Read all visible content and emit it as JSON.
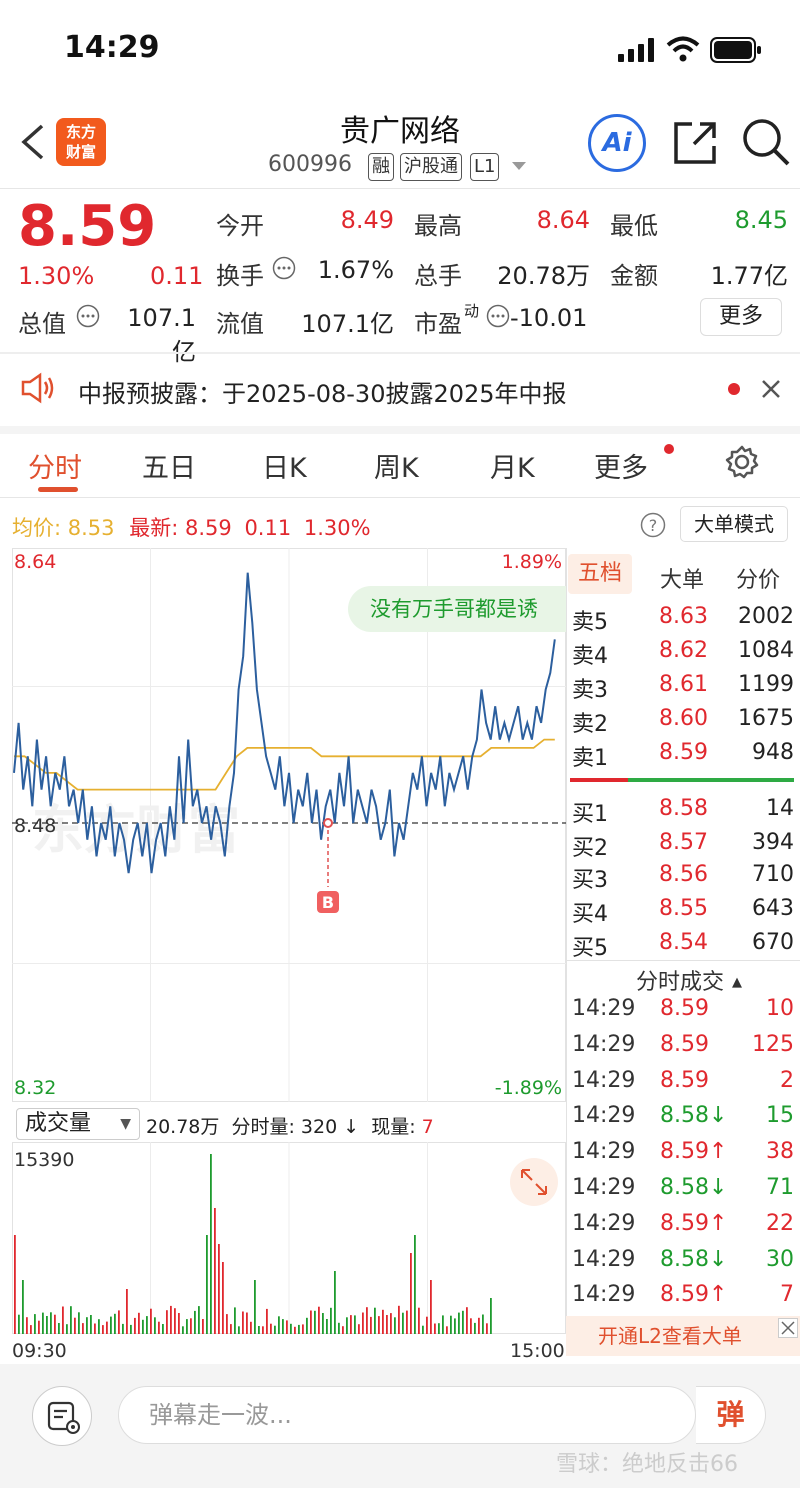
{
  "status": {
    "time": "14:29"
  },
  "header": {
    "logo": [
      "东方",
      "财富"
    ],
    "title": "贵广网络",
    "code": "600996",
    "tags": [
      "融",
      "沪股通",
      "L1"
    ],
    "ai_label": "Ai"
  },
  "quote": {
    "price": "8.59",
    "change_pct": "1.30%",
    "change": "0.11",
    "open_label": "今开",
    "open": "8.49",
    "high_label": "最高",
    "high": "8.64",
    "low_label": "最低",
    "low": "8.45",
    "turnover_label": "换手",
    "turnover": "1.67%",
    "volume_label": "总手",
    "volume": "20.78万",
    "amount_label": "金额",
    "amount": "1.77亿",
    "mcap_label": "总值",
    "mcap": "107.1亿",
    "float_label": "流值",
    "float": "107.1亿",
    "pe_label": "市盈",
    "pe_sup": "动",
    "pe": "-10.01",
    "more_label": "更多"
  },
  "notice": {
    "text": "中报预披露：于2025-08-30披露2025年中报"
  },
  "tabs": [
    "分时",
    "五日",
    "日K",
    "周K",
    "月K",
    "更多"
  ],
  "chart_info": {
    "avg_label": "均价:",
    "avg": "8.53",
    "latest_label": "最新:",
    "latest": "8.59",
    "latest_chg": "0.11",
    "latest_pct": "1.30%",
    "big_mode": "大单模式",
    "comment_bubble": "没有万手哥都是诱"
  },
  "chart_data": {
    "type": "line",
    "ylim": [
      8.32,
      8.64
    ],
    "y_tick_labels": [
      "8.64",
      "8.48",
      "8.32"
    ],
    "pct_labels": [
      "1.89%",
      "-1.89%"
    ],
    "x_tick_labels": [
      "09:30",
      "15:00"
    ],
    "prev_close": 8.48,
    "marker": {
      "label": "B",
      "price": 8.48
    },
    "series": [
      {
        "values": [
          8.51,
          8.54,
          8.5,
          8.52,
          8.49,
          8.53,
          8.5,
          8.52,
          8.49,
          8.51,
          8.5,
          8.52,
          8.49,
          8.5,
          8.48,
          8.5,
          8.47,
          8.49,
          8.46,
          8.48,
          8.47,
          8.49,
          8.46,
          8.48,
          8.47,
          8.45,
          8.47,
          8.48,
          8.46,
          8.48,
          8.45,
          8.47,
          8.48,
          8.46,
          8.49,
          8.47,
          8.52,
          8.48,
          8.53,
          8.49,
          8.5,
          8.48,
          8.49,
          8.47,
          8.49,
          8.48,
          8.46,
          8.49,
          8.51,
          8.56,
          8.58,
          8.63,
          8.6,
          8.56,
          8.54,
          8.52,
          8.51,
          8.5,
          8.52,
          8.49,
          8.51,
          8.48,
          8.5,
          8.49,
          8.51,
          8.48,
          8.5,
          8.47,
          8.49,
          8.5,
          8.48,
          8.51,
          8.49,
          8.52,
          8.48,
          8.5,
          8.49,
          8.48,
          8.5,
          8.49,
          8.47,
          8.48,
          8.5,
          8.46,
          8.48,
          8.47,
          8.49,
          8.51,
          8.5,
          8.52,
          8.49,
          8.51,
          8.5,
          8.52,
          8.49,
          8.51,
          8.5,
          8.51,
          8.52,
          8.5,
          8.52,
          8.53,
          8.56,
          8.54,
          8.53,
          8.55,
          8.53,
          8.54,
          8.53,
          8.54,
          8.55,
          8.53,
          8.54,
          8.53,
          8.55,
          8.54,
          8.56,
          8.57,
          8.59
        ]
      },
      {
        "values": [
          8.52,
          8.52,
          8.515,
          8.51,
          8.51,
          8.505,
          8.5,
          8.5,
          8.5,
          8.5,
          8.5,
          8.5,
          8.5,
          8.5,
          8.5,
          8.5,
          8.5,
          8.5,
          8.5,
          8.5,
          8.51,
          8.52,
          8.525,
          8.525,
          8.525,
          8.525,
          8.525,
          8.525,
          8.525,
          8.52,
          8.52,
          8.52,
          8.52,
          8.52,
          8.52,
          8.52,
          8.52,
          8.52,
          8.52,
          8.52,
          8.52,
          8.52,
          8.52,
          8.52,
          8.52,
          8.525,
          8.525,
          8.525,
          8.525,
          8.525,
          8.53,
          8.53
        ]
      }
    ]
  },
  "volume": {
    "label": "成交量",
    "total": "20.78万",
    "period_label": "分时量:",
    "period": "320",
    "current_label": "现量:",
    "current": "7",
    "max_label": "15390"
  },
  "orderbook": {
    "tabs": [
      "五档",
      "大单",
      "分价"
    ],
    "asks": [
      {
        "side": "卖5",
        "price": "8.63",
        "vol": "2002"
      },
      {
        "side": "卖4",
        "price": "8.62",
        "vol": "1084"
      },
      {
        "side": "卖3",
        "price": "8.61",
        "vol": "1199"
      },
      {
        "side": "卖2",
        "price": "8.60",
        "vol": "1675"
      },
      {
        "side": "卖1",
        "price": "8.59",
        "vol": "948"
      }
    ],
    "bids": [
      {
        "side": "买1",
        "price": "8.58",
        "vol": "14"
      },
      {
        "side": "买2",
        "price": "8.57",
        "vol": "394"
      },
      {
        "side": "买3",
        "price": "8.56",
        "vol": "710"
      },
      {
        "side": "买4",
        "price": "8.55",
        "vol": "643"
      },
      {
        "side": "买5",
        "price": "8.54",
        "vol": "670"
      }
    ]
  },
  "trades": {
    "title": "分时成交",
    "rows": [
      {
        "time": "14:29",
        "price": "8.59",
        "dir": "",
        "vol": "10",
        "color": "red"
      },
      {
        "time": "14:29",
        "price": "8.59",
        "dir": "",
        "vol": "125",
        "color": "red"
      },
      {
        "time": "14:29",
        "price": "8.59",
        "dir": "",
        "vol": "2",
        "color": "red"
      },
      {
        "time": "14:29",
        "price": "8.58",
        "dir": "↓",
        "vol": "15",
        "color": "green"
      },
      {
        "time": "14:29",
        "price": "8.59",
        "dir": "↑",
        "vol": "38",
        "color": "red"
      },
      {
        "time": "14:29",
        "price": "8.58",
        "dir": "↓",
        "vol": "71",
        "color": "green"
      },
      {
        "time": "14:29",
        "price": "8.59",
        "dir": "↑",
        "vol": "22",
        "color": "red"
      },
      {
        "time": "14:29",
        "price": "8.58",
        "dir": "↓",
        "vol": "30",
        "color": "green"
      },
      {
        "time": "14:29",
        "price": "8.59",
        "dir": "↑",
        "vol": "7",
        "color": "red"
      }
    ],
    "l2_label": "开通L2查看大单"
  },
  "bottom": {
    "placeholder": "弹幕走一波...",
    "danmu_btn": "弹"
  },
  "watermark": "雪球：绝地反击66",
  "colors": {
    "up": "#e0282e",
    "down": "#1e9b2e",
    "line": "#2c5f9e",
    "avg": "#e6b030",
    "accent": "#e0502e"
  }
}
